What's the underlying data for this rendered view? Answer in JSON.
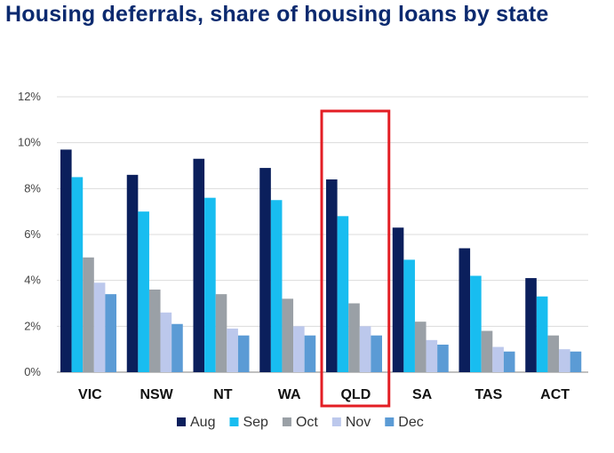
{
  "title": "Housing deferrals, share of housing loans by state",
  "chart_data": {
    "type": "bar",
    "title": "Housing deferrals, share of housing loans by state",
    "xlabel": "",
    "ylabel": "",
    "categories": [
      "VIC",
      "NSW",
      "NT",
      "WA",
      "QLD",
      "SA",
      "TAS",
      "ACT"
    ],
    "series": [
      {
        "name": "Aug",
        "color": "#0b1f5c",
        "values": [
          9.7,
          8.6,
          9.3,
          8.9,
          8.4,
          6.3,
          5.4,
          4.1
        ]
      },
      {
        "name": "Sep",
        "color": "#18bdf0",
        "values": [
          8.5,
          7.0,
          7.6,
          7.5,
          6.8,
          4.9,
          4.2,
          3.3
        ]
      },
      {
        "name": "Oct",
        "color": "#9aa0a6",
        "values": [
          5.0,
          3.6,
          3.4,
          3.2,
          3.0,
          2.2,
          1.8,
          1.6
        ]
      },
      {
        "name": "Nov",
        "color": "#bcc8ec",
        "values": [
          3.9,
          2.6,
          1.9,
          2.0,
          2.0,
          1.4,
          1.1,
          1.0
        ]
      },
      {
        "name": "Dec",
        "color": "#5b9bd5",
        "values": [
          3.4,
          2.1,
          1.6,
          1.6,
          1.6,
          1.2,
          0.9,
          0.9
        ]
      }
    ],
    "yticks": [
      "0%",
      "2%",
      "4%",
      "6%",
      "8%",
      "10%",
      "12%"
    ],
    "ylim": [
      0,
      12
    ],
    "grid": true,
    "legend_position": "bottom",
    "highlight": {
      "category": "QLD",
      "color": "#e31e24"
    }
  }
}
